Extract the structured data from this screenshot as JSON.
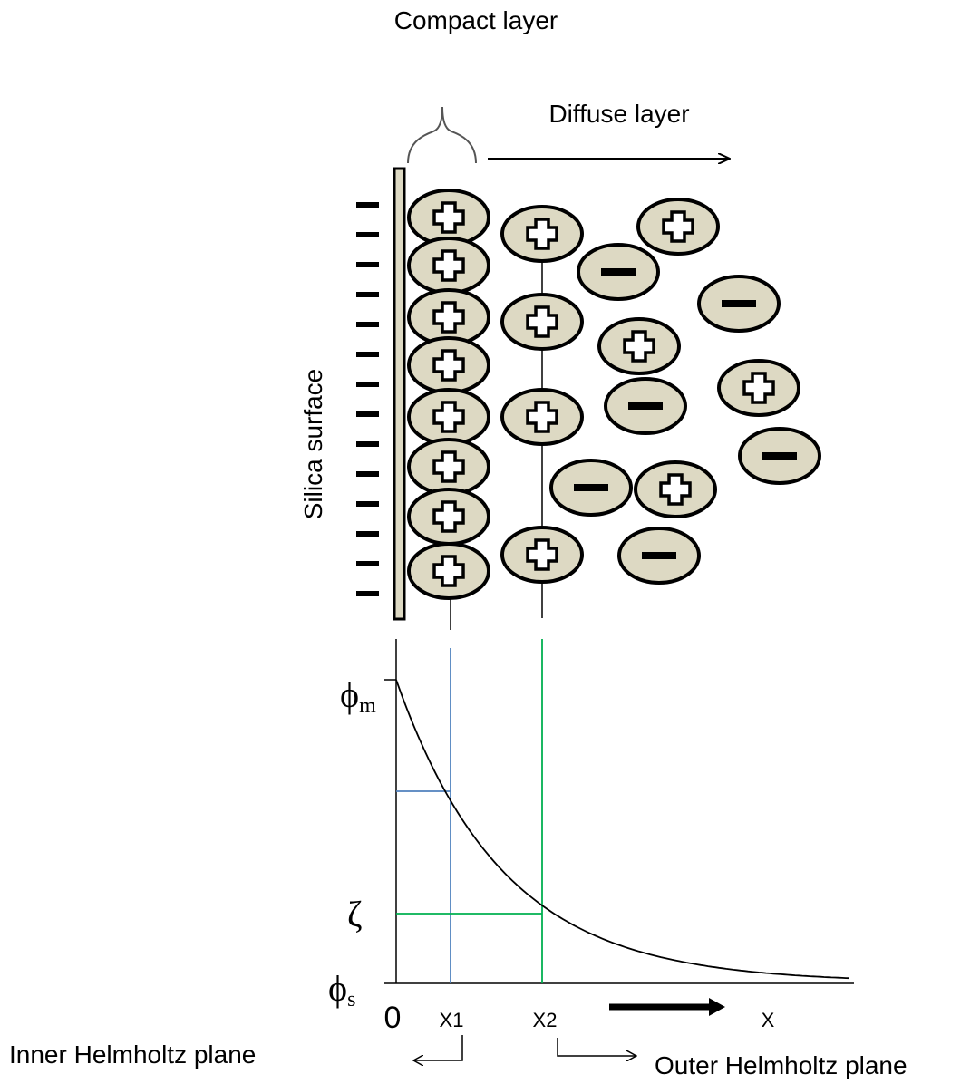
{
  "header": {
    "compact_layer": "Compact layer",
    "diffuse_layer": "Diffuse layer"
  },
  "surface_label": "Silica surface",
  "potential_axis": {
    "phi_m": {
      "symbol": "ϕ",
      "subscript": "m"
    },
    "zeta": "ζ",
    "phi_s": {
      "symbol": "ϕ",
      "subscript": "s"
    }
  },
  "distance_axis": {
    "origin": "0",
    "x1": "X1",
    "x2": "X2",
    "x": "X"
  },
  "planes": {
    "inner": "Inner Helmholtz plane",
    "outer": "Outer Helmholtz plane"
  }
}
